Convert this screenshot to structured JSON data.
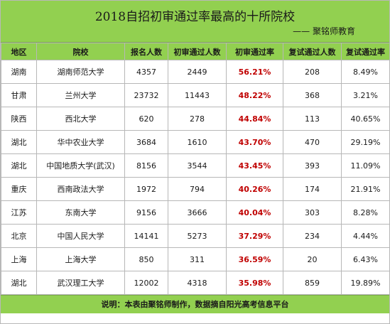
{
  "title": "2018自招初审通过率最高的十所院校",
  "byline": "—— 聚铭师教育",
  "columns": [
    "地区",
    "院校",
    "报名人数",
    "初审通过人数",
    "初审通过率",
    "复试通过人数",
    "复试通过率"
  ],
  "rows": [
    [
      "湖南",
      "湖南师范大学",
      "4357",
      "2449",
      "56.21%",
      "208",
      "8.49%"
    ],
    [
      "甘肃",
      "兰州大学",
      "23732",
      "11443",
      "48.22%",
      "368",
      "3.21%"
    ],
    [
      "陕西",
      "西北大学",
      "620",
      "278",
      "44.84%",
      "113",
      "40.65%"
    ],
    [
      "湖北",
      "华中农业大学",
      "3684",
      "1610",
      "43.70%",
      "470",
      "29.19%"
    ],
    [
      "湖北",
      "中国地质大学(武汉)",
      "8156",
      "3544",
      "43.45%",
      "393",
      "11.09%"
    ],
    [
      "重庆",
      "西南政法大学",
      "1972",
      "794",
      "40.26%",
      "174",
      "21.91%"
    ],
    [
      "江苏",
      "东南大学",
      "9156",
      "3666",
      "40.04%",
      "303",
      "8.28%"
    ],
    [
      "北京",
      "中国人民大学",
      "14141",
      "5273",
      "37.29%",
      "234",
      "4.44%"
    ],
    [
      "上海",
      "上海大学",
      "850",
      "311",
      "36.59%",
      "20",
      "6.43%"
    ],
    [
      "湖北",
      "武汉理工大学",
      "12002",
      "4318",
      "35.98%",
      "859",
      "19.89%"
    ]
  ],
  "note": "说明：本表由聚铭师制作，数据摘自阳光高考信息平台",
  "colors": {
    "header_bg": "#92d050",
    "rate_highlight": "#c00000"
  }
}
